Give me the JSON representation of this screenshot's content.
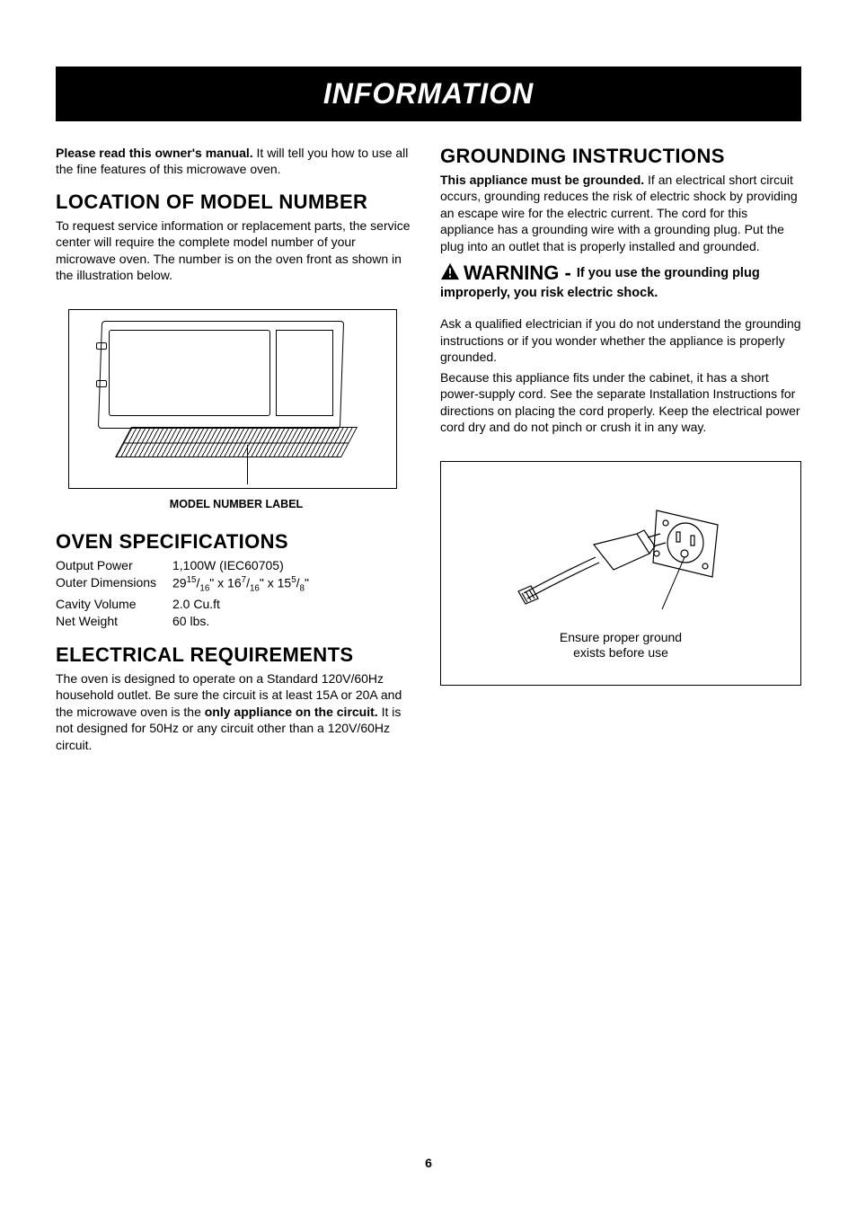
{
  "page_number": "6",
  "banner_title": "INFORMATION",
  "colors": {
    "banner_bg": "#000000",
    "banner_fg": "#ffffff",
    "page_bg": "#ffffff",
    "text": "#000000",
    "rule": "#000000"
  },
  "intro": {
    "bold": "Please read this owner's manual.",
    "rest": " It will tell you how to use all the fine features of this microwave oven."
  },
  "location": {
    "heading": "LOCATION OF MODEL NUMBER",
    "body": "To request service information or replacement parts, the service center will require the complete model number of your microwave oven. The number is on the oven front as shown in the illustration below.",
    "figure_caption": "MODEL NUMBER LABEL"
  },
  "specs": {
    "heading": "OVEN SPECIFICATIONS",
    "rows": [
      {
        "label": "Output Power",
        "value": "1,100W (IEC60705)"
      },
      {
        "label": "Outer Dimensions",
        "value_html": "29<sup>15</sup>/<sub>16</sub>\" x 16<sup>7</sup>/<sub>16</sub>\" x 15<sup>5</sup>/<sub>8</sub>\""
      },
      {
        "label": "Cavity Volume",
        "value": "2.0 Cu.ft"
      },
      {
        "label": "Net Weight",
        "value": "60 lbs."
      }
    ]
  },
  "electrical": {
    "heading": "ELECTRICAL REQUIREMENTS",
    "body_pre": "The oven is designed to operate on a Standard 120V/60Hz household outlet. Be sure the circuit is at least 15A or 20A and the microwave oven is the ",
    "body_bold": "only appliance on the circuit.",
    "body_post": " It is not designed for 50Hz or any circuit other than a 120V/60Hz circuit."
  },
  "grounding": {
    "heading": "GROUNDING INSTRUCTIONS",
    "lead_bold": "This appliance must be grounded.",
    "lead_rest": " If an electrical short circuit occurs, grounding reduces the risk of electric shock by providing an escape wire for the electric current. The cord for this appliance has a grounding wire with a grounding plug. Put the plug into an outlet that is properly installed and grounded.",
    "warning_word": "WARNING",
    "warning_sep": " - ",
    "warning_tail": "If you use the grounding plug improperly, you risk electric shock.",
    "para2": "Ask a qualified electrician if you do not understand the grounding instructions or if you wonder whether the appliance is properly grounded.",
    "para3": "Because this appliance fits under the cabinet, it has a short power-supply cord. See the separate Installation Instructions for directions on placing the cord properly. Keep the electrical power cord dry and do not pinch or crush it in any way.",
    "box_caption_line1": "Ensure proper ground",
    "box_caption_line2": "exists before use"
  }
}
